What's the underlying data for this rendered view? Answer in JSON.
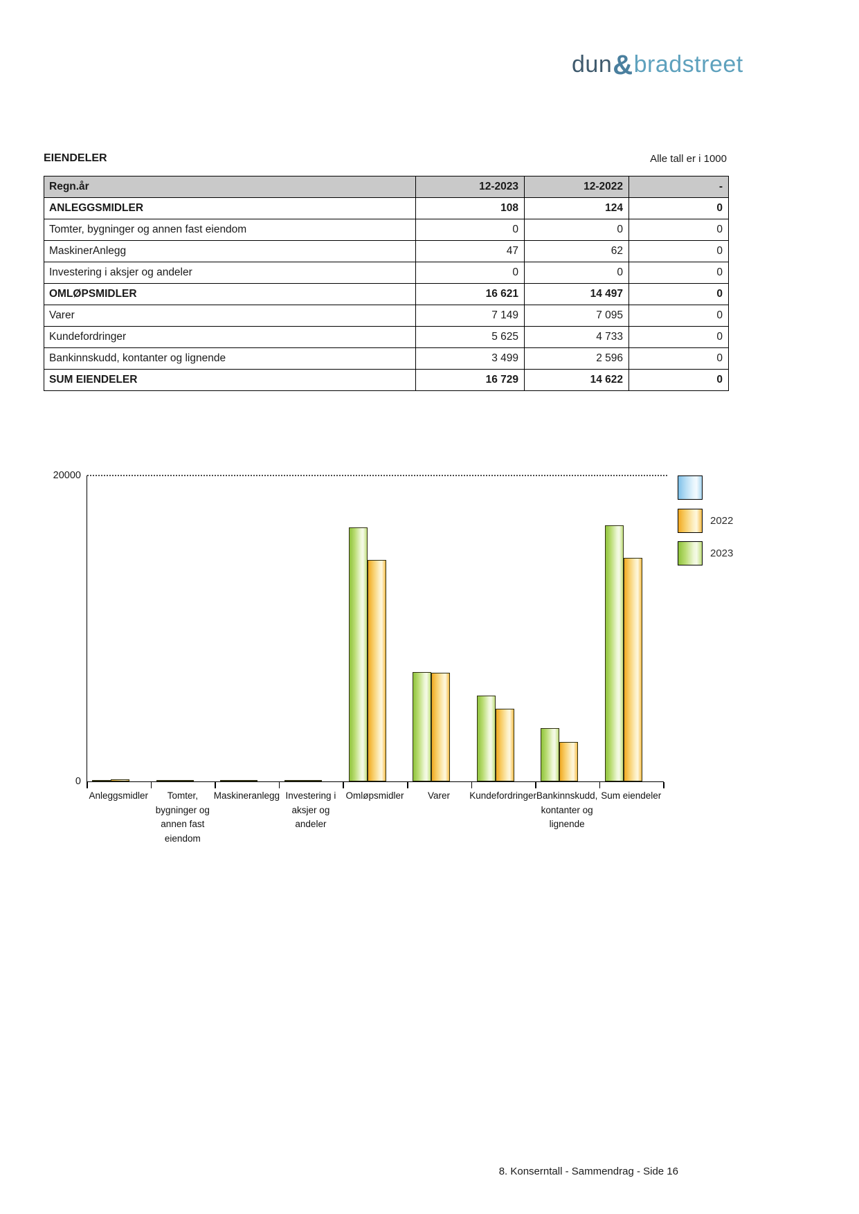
{
  "page": {
    "title": "EIENDELER",
    "units_note": "Alle tall er i 1000",
    "footer": "8. Konserntall - Sammendrag - Side 16"
  },
  "logo": {
    "part1": "dun",
    "amp": "&",
    "part2": "bradstreet"
  },
  "table": {
    "columns": [
      "Regn.år",
      "12-2023",
      "12-2022",
      "-"
    ],
    "rows": [
      {
        "label": "ANLEGGSMIDLER",
        "bold": true,
        "values": [
          "108",
          "124",
          "0"
        ]
      },
      {
        "label": "Tomter, bygninger og annen fast eiendom",
        "bold": false,
        "values": [
          "0",
          "0",
          "0"
        ]
      },
      {
        "label": "MaskinerAnlegg",
        "bold": false,
        "values": [
          "47",
          "62",
          "0"
        ]
      },
      {
        "label": "Investering i aksjer og andeler",
        "bold": false,
        "values": [
          "0",
          "0",
          "0"
        ]
      },
      {
        "label": "OMLØPSMIDLER",
        "bold": true,
        "values": [
          "16 621",
          "14 497",
          "0"
        ]
      },
      {
        "label": "Varer",
        "bold": false,
        "values": [
          "7 149",
          "7 095",
          "0"
        ]
      },
      {
        "label": "Kundefordringer",
        "bold": false,
        "values": [
          "5 625",
          "4 733",
          "0"
        ]
      },
      {
        "label": "Bankinnskudd, kontanter og lignende",
        "bold": false,
        "values": [
          "3 499",
          "2 596",
          "0"
        ]
      },
      {
        "label": "SUM EIENDELER",
        "bold": true,
        "values": [
          "16 729",
          "14 622",
          "0"
        ]
      }
    ]
  },
  "chart_data": {
    "type": "bar",
    "title": "",
    "xlabel": "",
    "ylabel": "",
    "ylim": [
      0,
      20000
    ],
    "yticks": [
      0,
      20000
    ],
    "grid": "dotted top gridline at 20000",
    "legend_position": "right",
    "categories": [
      "Anleggsmidler",
      "Tomter,\nbygninger og\nannen fast\neiendom",
      "Maskineranlegg",
      "Investering i\naksjer og\nandeler",
      "Omløpsmidler",
      "Varer",
      "Kundefordringer",
      "Bankinnskudd,\nkontanter og\nlignende",
      "Sum eiendeler"
    ],
    "series": [
      {
        "name": "2023",
        "color_key": "green",
        "values": [
          108,
          0,
          47,
          0,
          16621,
          7149,
          5625,
          3499,
          16729
        ]
      },
      {
        "name": "2022",
        "color_key": "orange",
        "values": [
          124,
          0,
          62,
          0,
          14497,
          7095,
          4733,
          2596,
          14622
        ]
      }
    ],
    "legend": [
      {
        "label": "",
        "color_key": "blue"
      },
      {
        "label": "2022",
        "color_key": "orange"
      },
      {
        "label": "2023",
        "color_key": "green"
      }
    ]
  },
  "colors": {
    "logo_dun": "#3f5a6d",
    "logo_amp": "#4a7f9e",
    "logo_bradstreet": "#5ea1bd",
    "table_header_bg": "#c9c9c9",
    "bar_green": "#8fc33c",
    "bar_orange": "#f1a922",
    "legend_blue": "#7fc0e8"
  }
}
